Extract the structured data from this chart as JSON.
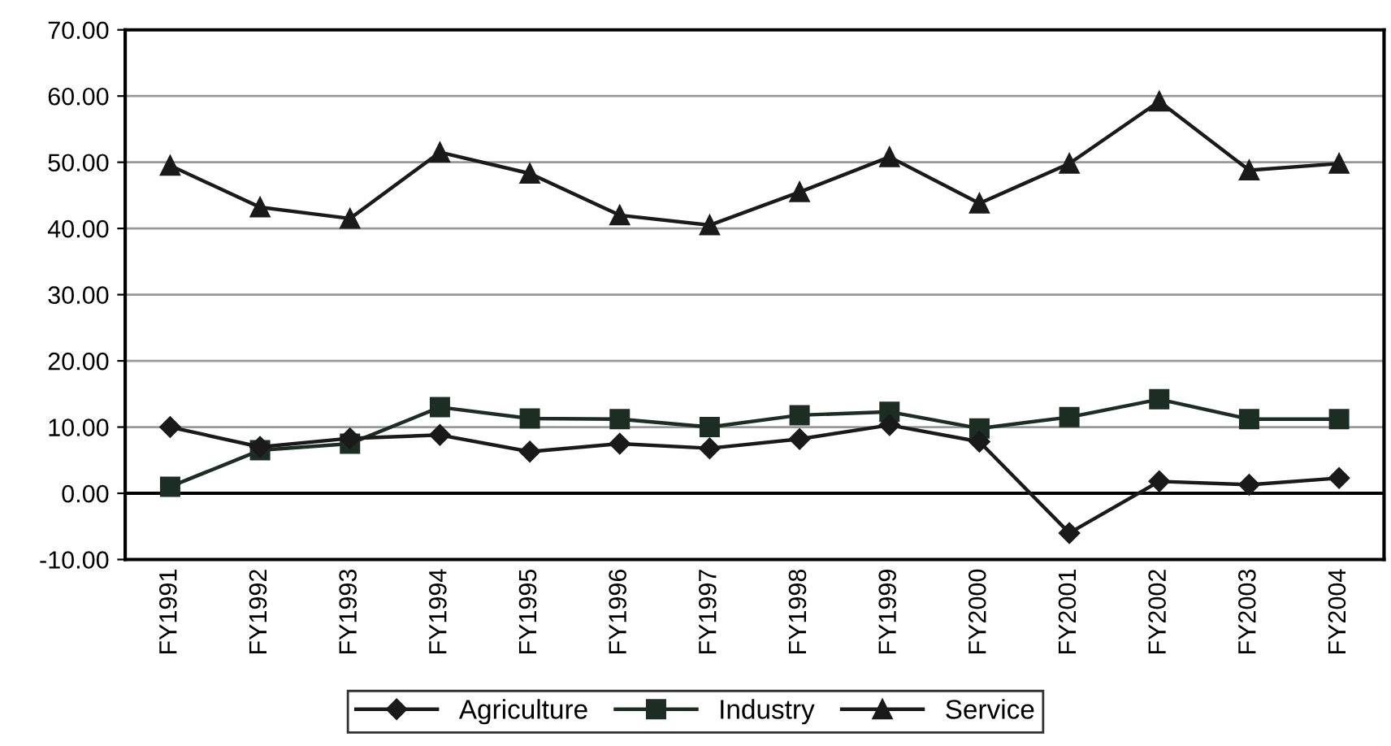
{
  "chart_data": {
    "type": "line",
    "categories": [
      "FY1991",
      "FY1992",
      "FY1993",
      "FY1994",
      "FY1995",
      "FY1996",
      "FY1997",
      "FY1998",
      "FY1999",
      "FY2000",
      "FY2001",
      "FY2002",
      "FY2003",
      "FY2004"
    ],
    "series": [
      {
        "name": "Agriculture",
        "color": "#1a1a1a",
        "marker": "diamond",
        "values": [
          10.0,
          7.0,
          8.3,
          8.8,
          6.3,
          7.5,
          6.8,
          8.2,
          10.3,
          7.8,
          -6.0,
          1.8,
          1.3,
          2.3
        ]
      },
      {
        "name": "Industry",
        "color": "#1c2e24",
        "marker": "square",
        "values": [
          1.0,
          6.5,
          7.5,
          13.0,
          11.3,
          11.2,
          10.0,
          11.8,
          12.3,
          9.8,
          11.5,
          14.2,
          11.2,
          11.2
        ]
      },
      {
        "name": "Service",
        "color": "#1a1a1a",
        "marker": "triangle",
        "values": [
          49.5,
          43.2,
          41.5,
          51.5,
          48.3,
          42.0,
          40.5,
          45.5,
          50.8,
          43.8,
          49.8,
          59.2,
          48.8,
          49.8
        ]
      }
    ],
    "ylim": [
      -10,
      70
    ],
    "yticks": [
      {
        "value": -10,
        "label": "-10.00"
      },
      {
        "value": 0,
        "label": "0.00"
      },
      {
        "value": 10,
        "label": "10.00"
      },
      {
        "value": 20,
        "label": "20.00"
      },
      {
        "value": 30,
        "label": "30.00"
      },
      {
        "value": 40,
        "label": "40.00"
      },
      {
        "value": 50,
        "label": "50.00"
      },
      {
        "value": 60,
        "label": "60.00"
      },
      {
        "value": 70,
        "label": "70.00"
      }
    ],
    "grid": "y",
    "legend": "bottom",
    "line_style": "solid"
  }
}
